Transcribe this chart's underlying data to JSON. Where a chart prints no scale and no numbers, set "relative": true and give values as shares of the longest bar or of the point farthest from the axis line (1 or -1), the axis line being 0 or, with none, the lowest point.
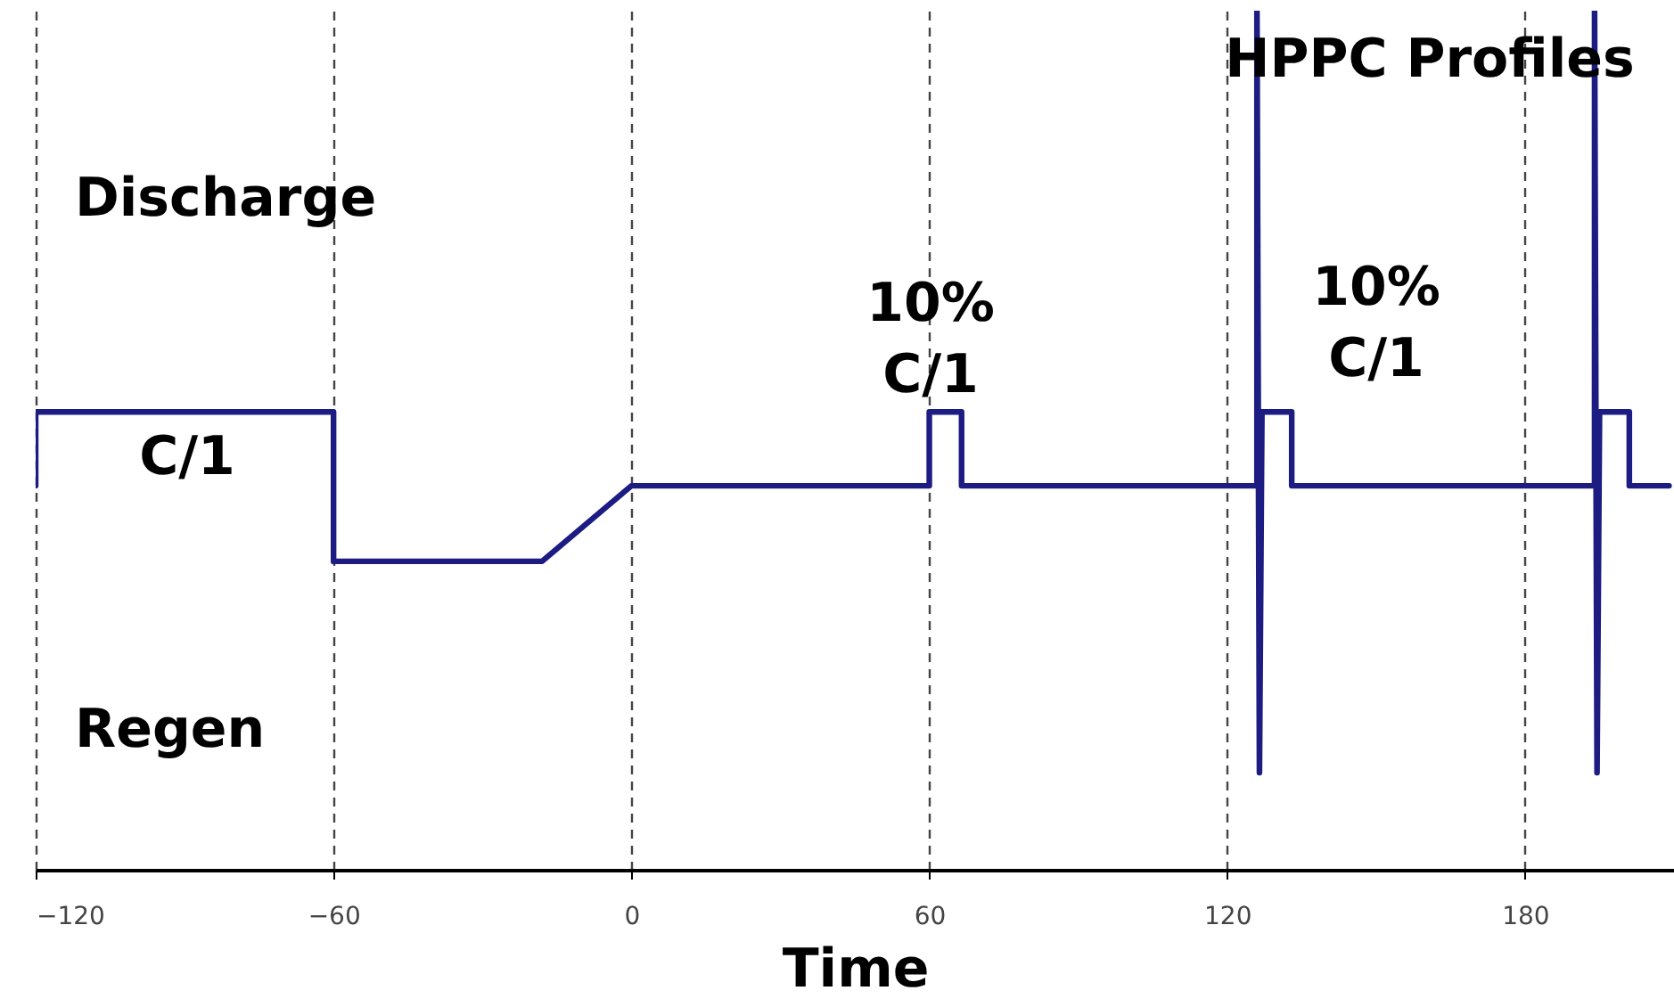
{
  "chart_data": {
    "type": "line",
    "relative": true,
    "xlabel": "Time",
    "xlim": [
      -120,
      210
    ],
    "xticks": [
      -120,
      -60,
      0,
      60,
      120,
      180
    ],
    "grid": "x",
    "line_style": "solid",
    "marker": "none",
    "x": [
      -120,
      -120,
      -60,
      -60,
      -18,
      0,
      60,
      60,
      66.5,
      66.5,
      126,
      126,
      126.5,
      127,
      133,
      133,
      194,
      194,
      194.5,
      195,
      201,
      201,
      209
    ],
    "series": [
      {
        "color": "#1c1c82",
        "values": [
          0.447,
          0.533,
          0.533,
          0.359,
          0.359,
          0.447,
          0.447,
          0.533,
          0.533,
          0.447,
          0.447,
          1,
          0.113,
          0.533,
          0.533,
          0.447,
          0.447,
          1,
          0.113,
          0.533,
          0.533,
          0.447,
          0.447
        ]
      }
    ],
    "annotations": [
      "Discharge",
      "Regen",
      "C/1",
      "10%\nC/1",
      "10%\nC/1",
      "HPPC Profiles"
    ]
  }
}
